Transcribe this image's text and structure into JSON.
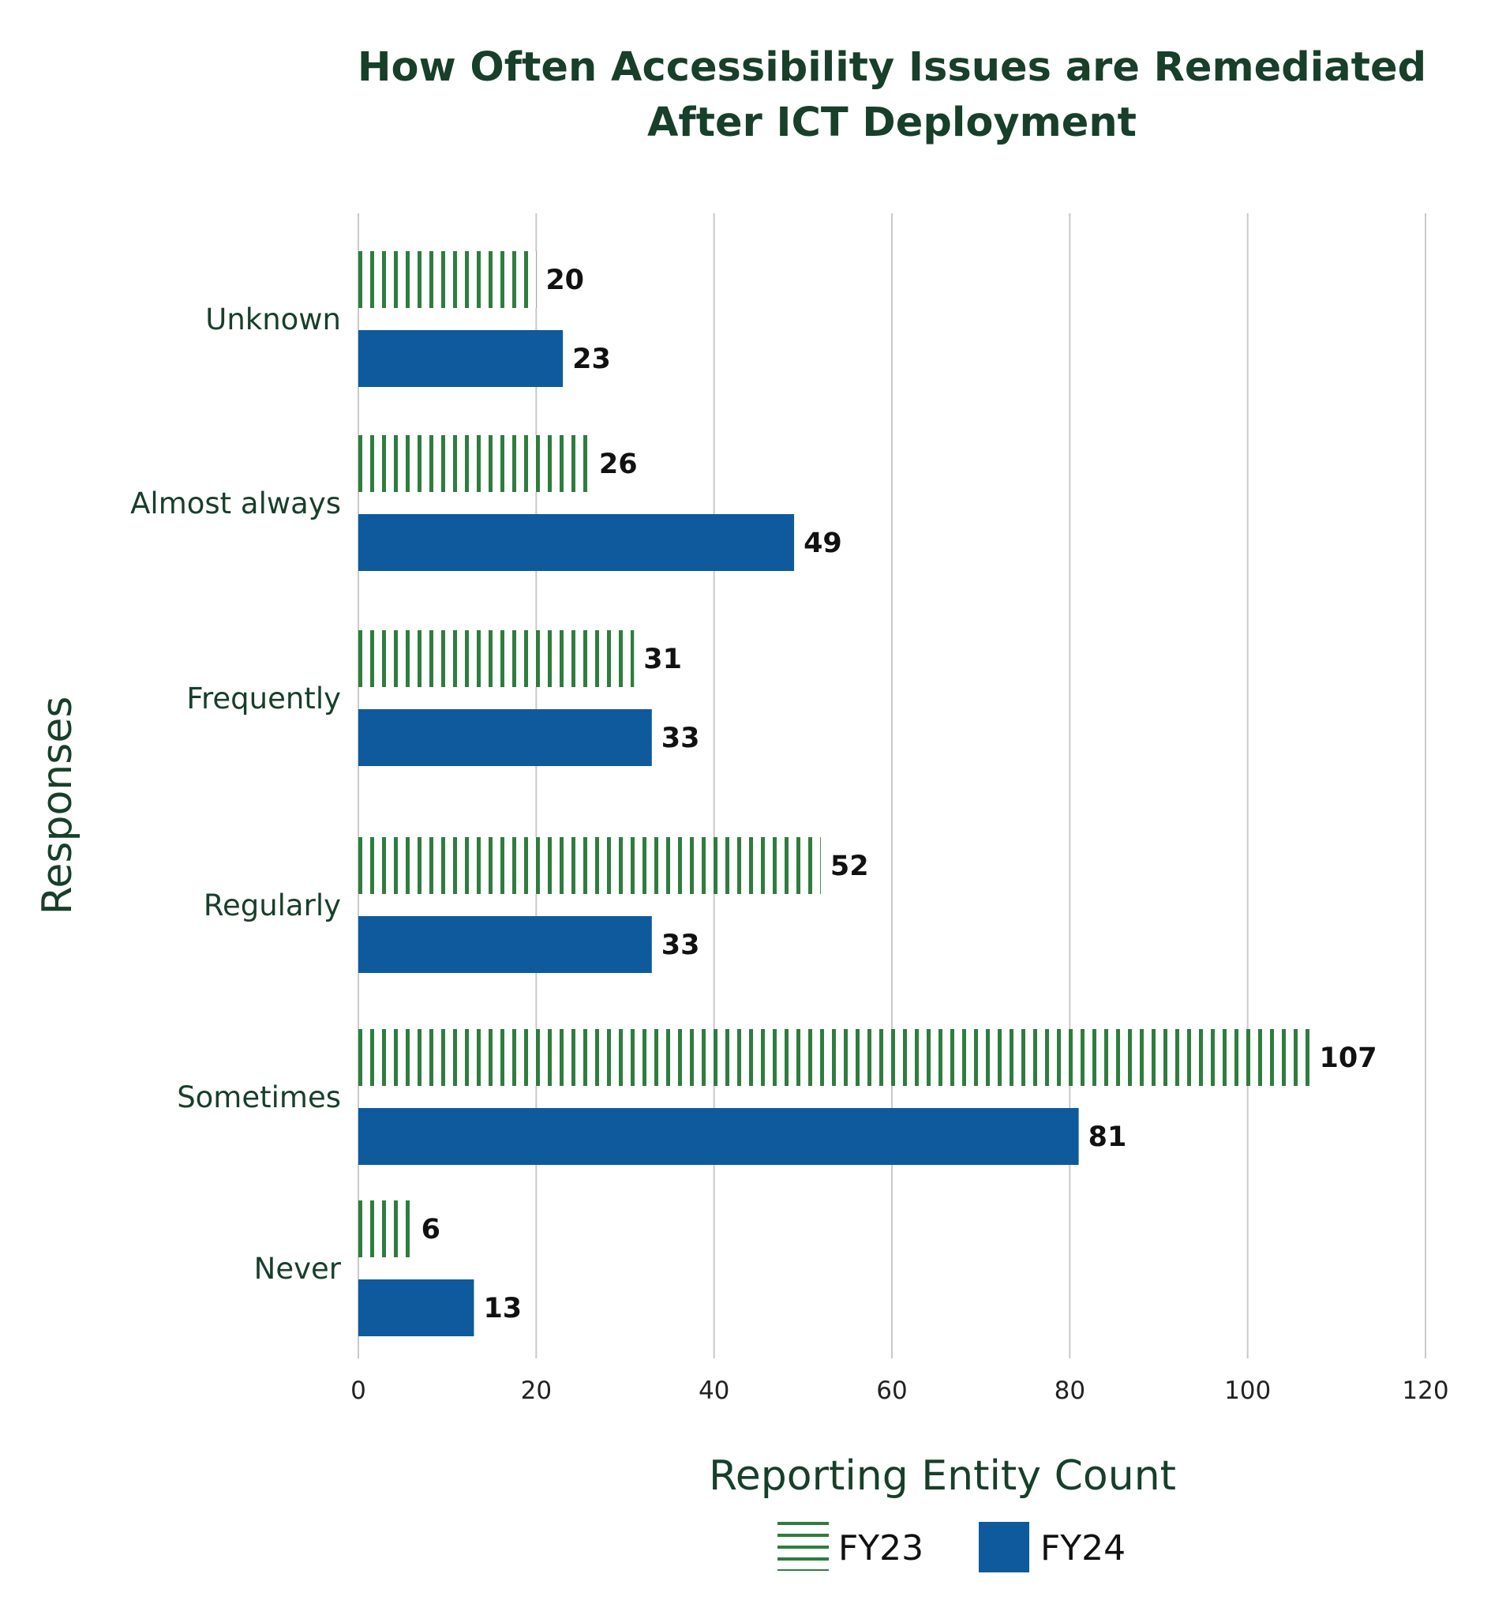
{
  "chart_data": {
    "type": "bar",
    "orientation": "horizontal",
    "title": "How Often Accessibility Issues are Remediated After ICT Deployment",
    "title_lines": [
      "How Often Accessibility Issues are Remediated",
      "After ICT Deployment"
    ],
    "xlabel": "Reporting Entity Count",
    "ylabel": "Responses",
    "categories": [
      "Unknown",
      "Almost always",
      "Frequently",
      "Regularly",
      "Sometimes",
      "Never"
    ],
    "series": [
      {
        "name": "FY23",
        "values": [
          20,
          26,
          31,
          52,
          107,
          6
        ],
        "color": "#2e7d3e",
        "pattern": "vertical-stripes"
      },
      {
        "name": "FY24",
        "values": [
          23,
          49,
          33,
          33,
          81,
          13
        ],
        "color": "#0e5a9c",
        "pattern": "solid"
      }
    ],
    "xlim": [
      0,
      120
    ],
    "xticks": [
      "0",
      "20",
      "40",
      "60",
      "80",
      "100",
      "120"
    ],
    "grid": "vertical",
    "data_labels": true,
    "legend": "bottom-center"
  }
}
